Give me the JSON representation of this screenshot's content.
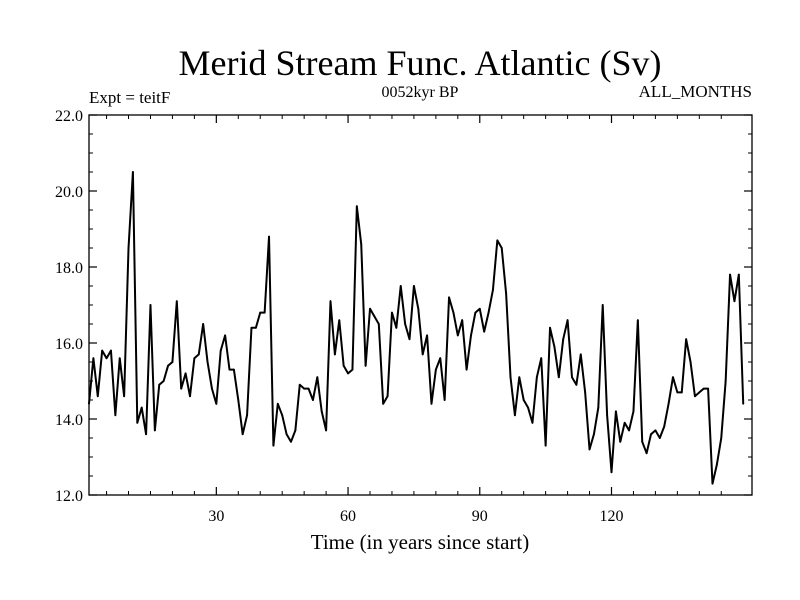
{
  "chart_data": {
    "type": "line",
    "title": "Merid Stream Func. Atlantic (Sv)",
    "subtitle": "0052kyr BP",
    "left_label": "Expt = teitF",
    "right_label": "ALL_MONTHS",
    "xlabel": "Time (in years since start)",
    "ylabel": "",
    "xlim": [
      1,
      152
    ],
    "ylim": [
      12.0,
      22.0
    ],
    "x_ticks": [
      30,
      60,
      90,
      120
    ],
    "x_tick_labels": [
      "30",
      "60",
      "90",
      "120"
    ],
    "y_ticks": [
      12,
      14,
      16,
      18,
      20,
      22
    ],
    "y_tick_labels": [
      "12.0",
      "14.0",
      "16.0",
      "18.0",
      "20.0",
      "22.0"
    ],
    "grid": false,
    "series": [
      {
        "name": "Merid Stream Func. Atlantic",
        "x_start": 1,
        "x_step": 1,
        "values": [
          14.4,
          15.6,
          14.6,
          15.8,
          15.6,
          15.8,
          14.1,
          15.6,
          14.6,
          18.5,
          20.5,
          13.9,
          14.3,
          13.6,
          17.0,
          13.7,
          14.9,
          15.0,
          15.4,
          15.5,
          17.1,
          14.8,
          15.2,
          14.6,
          15.6,
          15.7,
          16.5,
          15.5,
          14.8,
          14.4,
          15.8,
          16.2,
          15.3,
          15.3,
          14.5,
          13.6,
          14.1,
          16.4,
          16.4,
          16.8,
          16.8,
          18.8,
          13.3,
          14.4,
          14.1,
          13.6,
          13.4,
          13.7,
          14.9,
          14.8,
          14.8,
          14.5,
          15.1,
          14.2,
          13.7,
          17.1,
          15.7,
          16.6,
          15.4,
          15.2,
          15.3,
          19.6,
          18.6,
          15.4,
          16.9,
          16.7,
          16.5,
          14.4,
          14.6,
          16.8,
          16.4,
          17.5,
          16.5,
          16.1,
          17.5,
          16.9,
          15.7,
          16.2,
          14.4,
          15.3,
          15.6,
          14.5,
          17.2,
          16.8,
          16.2,
          16.6,
          15.3,
          16.2,
          16.8,
          16.9,
          16.3,
          16.8,
          17.4,
          18.7,
          18.5,
          17.3,
          15.1,
          14.1,
          15.1,
          14.5,
          14.3,
          13.9,
          15.1,
          15.6,
          13.3,
          16.4,
          15.9,
          15.1,
          16.1,
          16.6,
          15.1,
          14.9,
          15.7,
          14.7,
          13.2,
          13.6,
          14.3,
          17.0,
          14.1,
          12.6,
          14.2,
          13.4,
          13.9,
          13.7,
          14.2,
          16.6,
          13.4,
          13.1,
          13.6,
          13.7,
          13.5,
          13.8,
          14.4,
          15.1,
          14.7,
          14.7,
          16.1,
          15.5,
          14.6,
          14.7,
          14.8,
          14.8,
          12.3,
          12.8,
          13.5,
          15.0,
          17.8,
          17.1,
          17.8,
          14.4
        ]
      }
    ]
  }
}
